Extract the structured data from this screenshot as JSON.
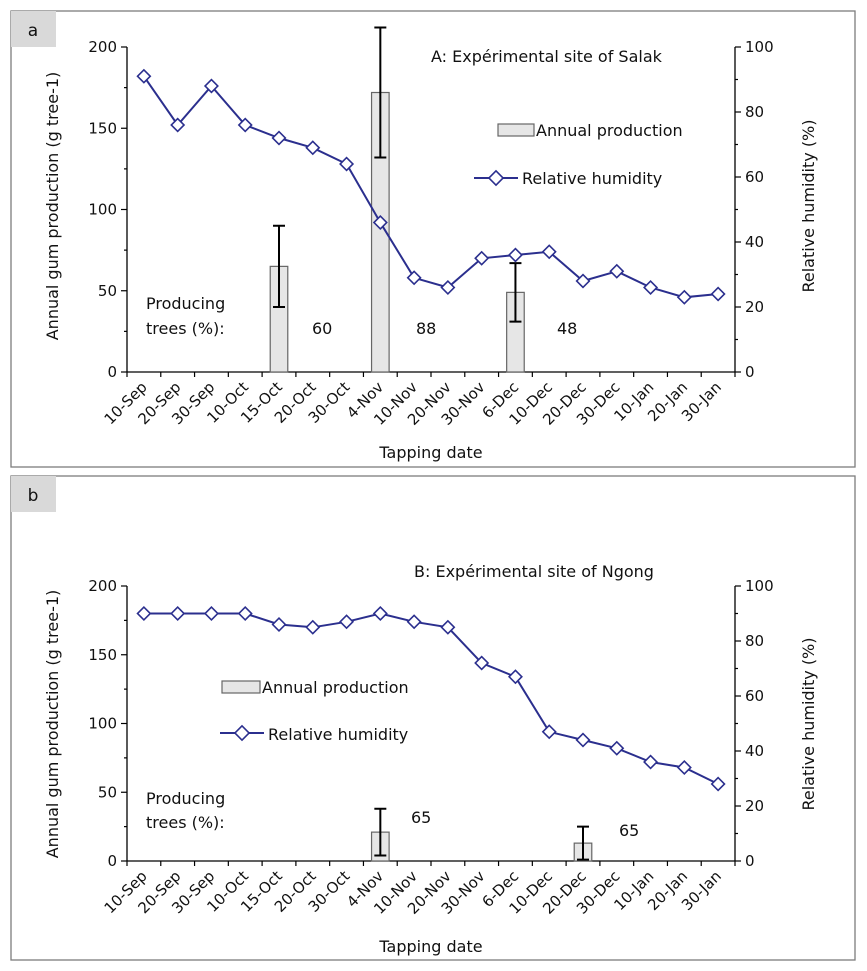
{
  "chart_data": [
    {
      "type": "bar",
      "panel_label": "a",
      "title": "A: Expérimental site of Salak",
      "xlabel": "Tapping date",
      "ylabel": "Annual gum production (g tree-1)",
      "y2label": "Relative humidity (%)",
      "ylim": [
        0,
        200
      ],
      "yticks": [
        0,
        50,
        100,
        150,
        200
      ],
      "y2lim": [
        0,
        100
      ],
      "y2ticks": [
        0,
        20,
        40,
        60,
        80,
        100
      ],
      "categories": [
        "10-Sep",
        "20-Sep",
        "30-Sep",
        "10-Oct",
        "15-Oct",
        "20-Oct",
        "30-Oct",
        "4-Nov",
        "10-Nov",
        "20-Nov",
        "30-Nov",
        "6-Dec",
        "10-Dec",
        "20-Dec",
        "30-Dec",
        "10-Jan",
        "20-Jan",
        "30-Jan"
      ],
      "series": [
        {
          "name": "Annual production",
          "type": "bar",
          "axis": "left",
          "values": [
            null,
            null,
            null,
            null,
            65,
            null,
            null,
            172,
            null,
            null,
            null,
            49,
            null,
            null,
            null,
            null,
            null,
            null
          ],
          "error": [
            null,
            null,
            null,
            null,
            25,
            null,
            null,
            40,
            null,
            null,
            null,
            18,
            null,
            null,
            null,
            null,
            null,
            null
          ]
        },
        {
          "name": "Relative humidity",
          "type": "line",
          "axis": "right",
          "values": [
            91,
            76,
            88,
            76,
            72,
            69,
            64,
            46,
            29,
            26,
            35,
            36,
            37,
            28,
            31,
            26,
            23,
            24
          ]
        }
      ],
      "producing_label_line1": "Producing",
      "producing_label_line2": "trees (%):",
      "producing_values": [
        {
          "category": "15-Oct",
          "text": "60"
        },
        {
          "category": "4-Nov",
          "text": "88"
        },
        {
          "category": "6-Dec",
          "text": "48"
        }
      ],
      "legend": {
        "placement": "upper-right-center",
        "bar_label": "Annual production",
        "line_label": "Relative humidity"
      }
    },
    {
      "type": "bar",
      "panel_label": "b",
      "title": "B: Expérimental site of Ngong",
      "xlabel": "Tapping date",
      "ylabel": "Annual gum production (g tree-1)",
      "y2label": "Relative humidity (%)",
      "ylim": [
        0,
        200
      ],
      "yticks": [
        0,
        50,
        100,
        150,
        200
      ],
      "y2lim": [
        0,
        100
      ],
      "y2ticks": [
        0,
        20,
        40,
        60,
        80,
        100
      ],
      "categories": [
        "10-Sep",
        "20-Sep",
        "30-Sep",
        "10-Oct",
        "15-Oct",
        "20-Oct",
        "30-Oct",
        "4-Nov",
        "10-Nov",
        "20-Nov",
        "30-Nov",
        "6-Dec",
        "10-Dec",
        "20-Dec",
        "30-Dec",
        "10-Jan",
        "20-Jan",
        "30-Jan"
      ],
      "series": [
        {
          "name": "Annual production",
          "type": "bar",
          "axis": "left",
          "values": [
            null,
            null,
            null,
            null,
            null,
            null,
            null,
            21,
            null,
            null,
            null,
            null,
            null,
            13,
            null,
            null,
            null,
            null
          ],
          "error": [
            null,
            null,
            null,
            null,
            null,
            null,
            null,
            17,
            null,
            null,
            null,
            null,
            null,
            12,
            null,
            null,
            null,
            null
          ]
        },
        {
          "name": "Relative humidity",
          "type": "line",
          "axis": "right",
          "values": [
            90,
            90,
            90,
            90,
            86,
            85,
            87,
            90,
            87,
            85,
            72,
            67,
            47,
            44,
            41,
            36,
            34,
            28
          ]
        }
      ],
      "producing_label_line1": "Producing",
      "producing_label_line2": "trees (%):",
      "producing_values": [
        {
          "category": "4-Nov",
          "text": "65"
        },
        {
          "category": "20-Dec",
          "text": "65"
        }
      ],
      "legend": {
        "placement": "middle-left",
        "bar_label": "Annual production",
        "line_label": "Relative humidity"
      }
    }
  ]
}
